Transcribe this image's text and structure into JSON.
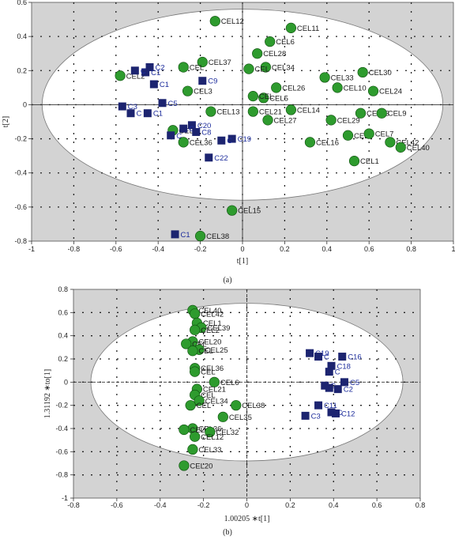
{
  "figure": {
    "panel_labels": [
      "(a)",
      "(b)"
    ]
  },
  "colors": {
    "cel_marker": "#2e9b2e",
    "cel_label": "#1a1a1a",
    "c_marker": "#1c2470",
    "c_label": "#1c2c9c",
    "plot_background": "#d3d3d3",
    "ellipse_fill": "#ffffff"
  },
  "chart_data": [
    {
      "type": "scatter",
      "title": "",
      "xlabel": "t[1]",
      "ylabel": "t[2]",
      "xlim": [
        -1,
        1
      ],
      "ylim": [
        -0.8,
        0.6
      ],
      "xticks": [
        -1,
        -0.8,
        -0.6,
        -0.4,
        -0.2,
        0,
        0.2,
        0.4,
        0.6,
        0.8,
        1
      ],
      "yticks": [
        -0.8,
        -0.6,
        -0.4,
        -0.2,
        0,
        0.2,
        0.4,
        0.6
      ],
      "xtick_labels": [
        "-1",
        "-0.8",
        "-0.6",
        "-0.4",
        "-0.2",
        "0",
        "0.2",
        "0.4",
        "0.6",
        "0.8",
        "1"
      ],
      "ytick_labels": [
        "-0.8",
        "-0.6",
        "-0.4",
        "-0.2",
        "0",
        "0.2",
        "0.4",
        "0.6"
      ],
      "ellipse": {
        "rx": 0.95,
        "ry": 0.56
      },
      "grid": true,
      "series": [
        {
          "marker": "circle",
          "points": [
            {
              "label": "CEL12",
              "x": -0.13,
              "y": 0.49
            },
            {
              "label": "CEL11",
              "x": 0.23,
              "y": 0.45
            },
            {
              "label": "CEL6",
              "x": 0.13,
              "y": 0.37
            },
            {
              "label": "CEL28",
              "x": 0.07,
              "y": 0.3
            },
            {
              "label": "CEL34",
              "x": 0.11,
              "y": 0.22
            },
            {
              "label": "CEL37",
              "x": -0.19,
              "y": 0.25
            },
            {
              "label": "CEL",
              "x": 0.03,
              "y": 0.21
            },
            {
              "label": "CEL2",
              "x": -0.58,
              "y": 0.17
            },
            {
              "label": "CEL",
              "x": -0.28,
              "y": 0.22
            },
            {
              "label": "CEL3",
              "x": -0.26,
              "y": 0.08
            },
            {
              "label": "CEL33",
              "x": 0.39,
              "y": 0.16
            },
            {
              "label": "CEL30",
              "x": 0.57,
              "y": 0.19
            },
            {
              "label": "CEL10",
              "x": 0.45,
              "y": 0.1
            },
            {
              "label": "CEL24",
              "x": 0.62,
              "y": 0.08
            },
            {
              "label": "CEL26",
              "x": 0.16,
              "y": 0.1
            },
            {
              "label": "CEL5",
              "x": 0.1,
              "y": 0.04
            },
            {
              "label": "CEL",
              "x": 0.05,
              "y": 0.05
            },
            {
              "label": "CEL13",
              "x": -0.15,
              "y": -0.04
            },
            {
              "label": "CEL21",
              "x": 0.05,
              "y": -0.04
            },
            {
              "label": "CEL14",
              "x": 0.23,
              "y": -0.03
            },
            {
              "label": "CEL27",
              "x": 0.12,
              "y": -0.09
            },
            {
              "label": "CEL29",
              "x": 0.42,
              "y": -0.09
            },
            {
              "label": "CEL23",
              "x": 0.56,
              "y": -0.05
            },
            {
              "label": "CEL9",
              "x": 0.66,
              "y": -0.05
            },
            {
              "label": "CEL3",
              "x": 0.5,
              "y": -0.18
            },
            {
              "label": "CEL7",
              "x": 0.6,
              "y": -0.17
            },
            {
              "label": "CEL42",
              "x": 0.7,
              "y": -0.22
            },
            {
              "label": "CEL40",
              "x": 0.75,
              "y": -0.25
            },
            {
              "label": "CEL16",
              "x": 0.32,
              "y": -0.22
            },
            {
              "label": "CEL1",
              "x": 0.53,
              "y": -0.33
            },
            {
              "label": "CEL36",
              "x": -0.28,
              "y": -0.22
            },
            {
              "label": "CEL",
              "x": -0.33,
              "y": -0.15
            },
            {
              "label": "CEL15",
              "x": -0.05,
              "y": -0.62
            },
            {
              "label": "CEL38",
              "x": -0.2,
              "y": -0.77
            }
          ]
        },
        {
          "marker": "square",
          "points": [
            {
              "label": "C2",
              "x": -0.44,
              "y": 0.22
            },
            {
              "label": "C1",
              "x": -0.46,
              "y": 0.19
            },
            {
              "label": "C",
              "x": -0.51,
              "y": 0.2
            },
            {
              "label": "C1",
              "x": -0.42,
              "y": 0.12
            },
            {
              "label": "C9",
              "x": -0.19,
              "y": 0.14
            },
            {
              "label": "C3",
              "x": -0.57,
              "y": -0.01
            },
            {
              "label": "C",
              "x": -0.53,
              "y": -0.05
            },
            {
              "label": "C1",
              "x": -0.45,
              "y": -0.05
            },
            {
              "label": "C5",
              "x": -0.38,
              "y": 0.01
            },
            {
              "label": "C20",
              "x": -0.24,
              "y": -0.12
            },
            {
              "label": "C",
              "x": -0.28,
              "y": -0.14
            },
            {
              "label": "C8",
              "x": -0.22,
              "y": -0.16
            },
            {
              "label": "C",
              "x": -0.34,
              "y": -0.18
            },
            {
              "label": "C19",
              "x": -0.05,
              "y": -0.2
            },
            {
              "label": "C",
              "x": -0.1,
              "y": -0.21
            },
            {
              "label": "C22",
              "x": -0.16,
              "y": -0.31
            },
            {
              "label": "C1",
              "x": -0.32,
              "y": -0.76
            }
          ]
        }
      ]
    },
    {
      "type": "scatter",
      "title": "",
      "xlabel": "1.00205 ∗t[1]",
      "ylabel": "1.31192 ∗to[1]",
      "xlim": [
        -0.8,
        0.8
      ],
      "ylim": [
        -1,
        0.8
      ],
      "xticks": [
        -0.8,
        -0.6,
        -0.4,
        -0.2,
        0,
        0.2,
        0.4,
        0.6,
        0.8
      ],
      "yticks": [
        -1,
        -0.8,
        -0.6,
        -0.4,
        -0.2,
        0,
        0.2,
        0.4,
        0.6,
        0.8
      ],
      "xtick_labels": [
        "-0.8",
        "-0.6",
        "-0.4",
        "-0.2",
        "0",
        "0.2",
        "0.4",
        "0.6",
        "0.8"
      ],
      "ytick_labels": [
        "-1",
        "-0.8",
        "-0.6",
        "-0.4",
        "-0.2",
        "0",
        "0.2",
        "0.4",
        "0.6",
        "0.8"
      ],
      "ellipse": {
        "rx": 0.72,
        "ry": 0.68
      },
      "grid": true,
      "series": [
        {
          "marker": "circle",
          "points": [
            {
              "label": "CEL40",
              "x": -0.25,
              "y": 0.62
            },
            {
              "label": "CEL42",
              "x": -0.24,
              "y": 0.59
            },
            {
              "label": "CEL1",
              "x": -0.23,
              "y": 0.51
            },
            {
              "label": "CEL39",
              "x": -0.21,
              "y": 0.47
            },
            {
              "label": "CEL2",
              "x": -0.24,
              "y": 0.45
            },
            {
              "label": "CEL20",
              "x": -0.25,
              "y": 0.35
            },
            {
              "label": "CEL",
              "x": -0.28,
              "y": 0.33
            },
            {
              "label": "CEL25",
              "x": -0.22,
              "y": 0.28
            },
            {
              "label": "CEL",
              "x": -0.25,
              "y": 0.27
            },
            {
              "label": "CEL36",
              "x": -0.24,
              "y": 0.12
            },
            {
              "label": "CEL",
              "x": -0.24,
              "y": 0.09
            },
            {
              "label": "CEL6",
              "x": -0.15,
              "y": 0.0
            },
            {
              "label": "CEL21",
              "x": -0.23,
              "y": -0.06
            },
            {
              "label": "CEL",
              "x": -0.24,
              "y": -0.11
            },
            {
              "label": "CEL34",
              "x": -0.22,
              "y": -0.16
            },
            {
              "label": "CEL",
              "x": -0.26,
              "y": -0.2
            },
            {
              "label": "CEL38",
              "x": -0.05,
              "y": -0.2
            },
            {
              "label": "CEL35",
              "x": -0.11,
              "y": -0.3
            },
            {
              "label": "CEL36",
              "x": -0.25,
              "y": -0.4
            },
            {
              "label": "CEL32",
              "x": -0.17,
              "y": -0.43
            },
            {
              "label": "CEL12",
              "x": -0.24,
              "y": -0.47
            },
            {
              "label": "CEL",
              "x": -0.29,
              "y": -0.41
            },
            {
              "label": "CEL33",
              "x": -0.25,
              "y": -0.58
            },
            {
              "label": "CEL20",
              "x": -0.29,
              "y": -0.72
            }
          ]
        },
        {
          "marker": "square",
          "points": [
            {
              "label": "C19",
              "x": 0.29,
              "y": 0.25
            },
            {
              "label": "C",
              "x": 0.33,
              "y": 0.22
            },
            {
              "label": "C16",
              "x": 0.44,
              "y": 0.22
            },
            {
              "label": "C18",
              "x": 0.39,
              "y": 0.14
            },
            {
              "label": "C",
              "x": 0.38,
              "y": 0.09
            },
            {
              "label": "C5",
              "x": 0.45,
              "y": 0.0
            },
            {
              "label": "C",
              "x": 0.36,
              "y": -0.03
            },
            {
              "label": "C",
              "x": 0.38,
              "y": -0.05
            },
            {
              "label": "C2",
              "x": 0.42,
              "y": -0.06
            },
            {
              "label": "C11",
              "x": 0.33,
              "y": -0.2
            },
            {
              "label": "C",
              "x": 0.39,
              "y": -0.26
            },
            {
              "label": "C3",
              "x": 0.27,
              "y": -0.29
            },
            {
              "label": "C12",
              "x": 0.41,
              "y": -0.27
            }
          ]
        }
      ]
    }
  ]
}
